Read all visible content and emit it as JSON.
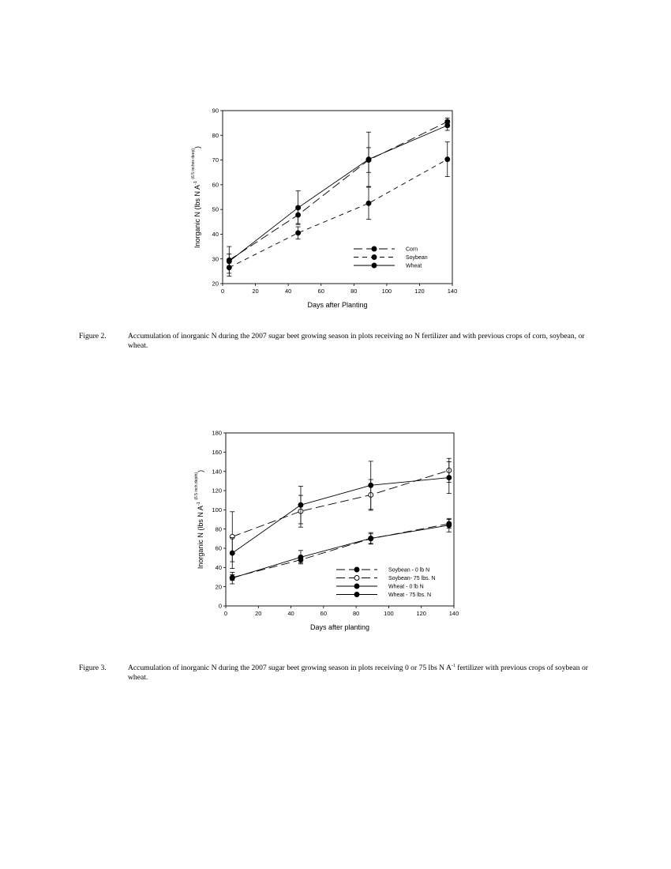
{
  "figures": [
    {
      "number": "Figure 2.",
      "caption": "Accumulation of inorganic N during the 2007 sugar beet growing season in plots receiving no N fertilizer and with previous crops of corn, soybean, or wheat.",
      "chart_data": {
        "type": "line",
        "title": "",
        "xlabel": "Days after Planting",
        "ylabel": "Inorganic N (lbs N A",
        "ylabel_sup": "-1",
        "ylabel_sub": "(6.5 inches deep)",
        "xlim": [
          0,
          140
        ],
        "ylim": [
          20,
          90
        ],
        "xticks": [
          "0",
          "20",
          "40",
          "60",
          "80",
          "100",
          "120",
          "140"
        ],
        "yticks": [
          "20",
          "30",
          "40",
          "50",
          "60",
          "70",
          "80",
          "90"
        ],
        "grid": false,
        "legend_position": "bottom-right",
        "series": [
          {
            "name": "Corn",
            "style": "long-dash",
            "marker": "filled",
            "x": [
              4,
              46,
              89,
              137
            ],
            "y": [
              29.5,
              47.8,
              70.0,
              85.5
            ],
            "err": [
              2.5,
              3.5,
              5.0,
              1.5
            ]
          },
          {
            "name": "Soybean",
            "style": "short-dash",
            "marker": "filled",
            "x": [
              4,
              46,
              89,
              137
            ],
            "y": [
              26.5,
              40.5,
              52.5,
              70.3
            ],
            "err": [
              2.3,
              2.5,
              6.5,
              7.0
            ]
          },
          {
            "name": "Wheat",
            "style": "solid",
            "marker": "filled",
            "x": [
              4,
              46,
              89,
              137
            ],
            "y": [
              29.0,
              50.7,
              70.3,
              84.0
            ],
            "err": [
              6.0,
              6.8,
              11.0,
              2.0
            ]
          }
        ]
      }
    },
    {
      "number": "Figure 3.",
      "caption_pre": "Accumulation of inorganic N during the 2007 sugar beet growing season in plots receiving 0 or 75 lbs N A",
      "caption_sup": "-1",
      "caption_post": " fertilizer with previous crops of soybean or wheat.",
      "chart_data": {
        "type": "line",
        "title": "",
        "xlabel": "Days after planting",
        "ylabel": "Inorganic N (lbs N A",
        "ylabel_sup": "-1",
        "ylabel_sub": "(6.5 inch depth)",
        "xlim": [
          0,
          140
        ],
        "ylim": [
          0,
          180
        ],
        "xticks": [
          "0",
          "20",
          "40",
          "60",
          "80",
          "100",
          "120",
          "140"
        ],
        "yticks": [
          "0",
          "20",
          "40",
          "60",
          "80",
          "100",
          "120",
          "140",
          "160",
          "180"
        ],
        "grid": false,
        "legend_position": "bottom-right",
        "series": [
          {
            "name": "Soybean - 0 lb N",
            "style": "long-dash",
            "marker": "filled",
            "x": [
              4,
              46,
              89,
              137
            ],
            "y": [
              29.5,
              48.0,
              70.0,
              85.5
            ],
            "err": [
              3.0,
              3.0,
              5.0,
              4.5
            ]
          },
          {
            "name": "Soybean- 75 lbs. N",
            "style": "long-dash",
            "marker": "open",
            "x": [
              4,
              46,
              89,
              137
            ],
            "y": [
              72.0,
              98.5,
              115.5,
              141.0
            ],
            "err": [
              26.0,
              16.5,
              16.0,
              12.5
            ]
          },
          {
            "name": "Wheat - 0 lb N",
            "style": "solid",
            "marker": "filled",
            "x": [
              4,
              46,
              89,
              137
            ],
            "y": [
              29.0,
              50.7,
              70.3,
              84.0
            ],
            "err": [
              6.0,
              7.0,
              6.0,
              7.0
            ]
          },
          {
            "name": "Wheat - 75 lbs. N",
            "style": "solid",
            "marker": "filled",
            "x": [
              4,
              46,
              89,
              137
            ],
            "y": [
              55.0,
              105.0,
              125.5,
              133.5
            ],
            "err": [
              16.0,
              19.5,
              25.0,
              16.5
            ]
          }
        ]
      }
    }
  ]
}
